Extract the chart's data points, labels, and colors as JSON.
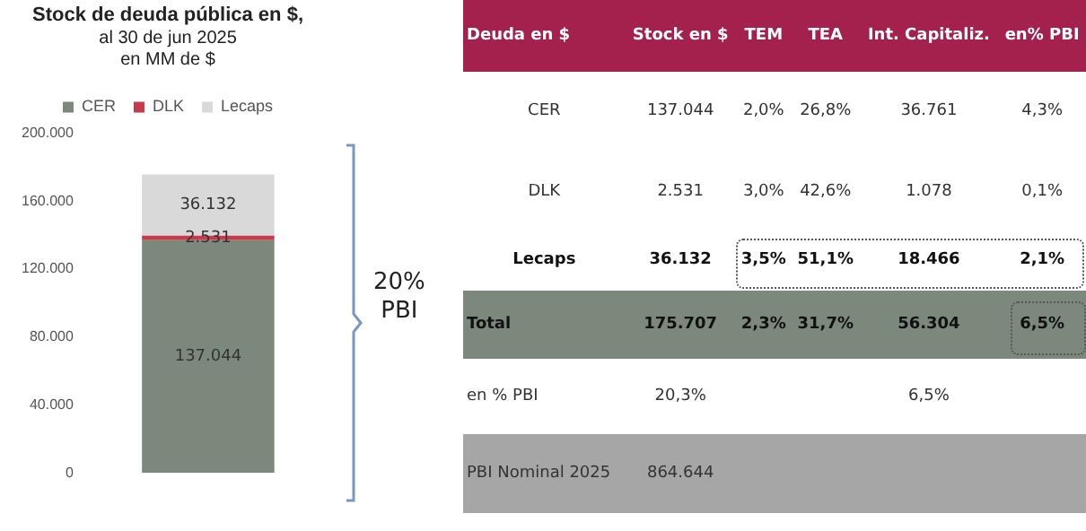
{
  "chart_data": [
    {
      "type": "bar",
      "title": "Stock de deuda pública en $,",
      "subtitle": "al 30 de jun 2025\nen MM de $",
      "categories": [
        null
      ],
      "stacked": true,
      "legend": "top",
      "ylim": [
        0,
        200000
      ],
      "yticks": [
        {
          "value": 0,
          "label": "0"
        },
        {
          "value": 40000,
          "label": "40.000"
        },
        {
          "value": 80000,
          "label": "80.000"
        },
        {
          "value": 120000,
          "label": "120.000"
        },
        {
          "value": 160000,
          "label": "160.000"
        },
        {
          "value": 200000,
          "label": "200.000"
        }
      ],
      "grid": false,
      "series": [
        {
          "name": "CER",
          "color": "#7b887b",
          "values": [
            137044
          ],
          "value_labels": [
            "137.044"
          ]
        },
        {
          "name": "DLK",
          "color": "#c73a4c",
          "values": [
            2531
          ],
          "value_labels": [
            "2.531"
          ]
        },
        {
          "name": "Lecaps",
          "color": "#d9d9d9",
          "values": [
            36132
          ],
          "value_labels": [
            "36.132"
          ]
        }
      ],
      "annotations": [
        "20%\nPBI"
      ]
    },
    {
      "type": "other",
      "categories": [
        "Deuda en $",
        "Stock en $",
        "TEM",
        "TEA",
        "Int. Capitaliz.",
        "en% PBI"
      ],
      "cell_labels": [
        [
          "CER",
          "137.044",
          "2,0%",
          "26,8%",
          "36.761",
          "4,3%"
        ],
        [
          "DLK",
          "2.531",
          "3,0%",
          "42,6%",
          "1.078",
          "0,1%"
        ],
        [
          "Lecaps",
          "36.132",
          "3,5%",
          "51,1%",
          "18.466",
          "2,1%"
        ],
        [
          "Total",
          "175.707",
          "2,3%",
          "31,7%",
          "56.304",
          "6,5%"
        ],
        [
          "en % PBI",
          "20,3%",
          null,
          null,
          "6,5%",
          null
        ],
        [
          "PBI Nominal 2025",
          "864.644",
          null,
          null,
          null,
          null
        ]
      ]
    }
  ]
}
